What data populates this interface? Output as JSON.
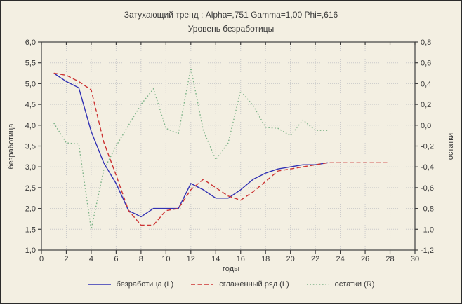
{
  "window": {
    "background": "#f3efe2",
    "frame_color": "#3f3f3f",
    "grid_color": "#c9c9c9",
    "text_color": "#3a3a3a"
  },
  "chart_data": {
    "type": "line",
    "title": "Затухающий тренд ; Alpha=,751 Gamma=1,00 Phi=,616",
    "subtitle": "Уровень безработицы",
    "xlabel": "годы",
    "ylabel_left": "безработица",
    "ylabel_right": "остатки",
    "grid": true,
    "legend_position": "bottom",
    "xlim": [
      0,
      30
    ],
    "ylim_left": [
      1.0,
      6.0
    ],
    "ylim_right": [
      -1.2,
      0.8
    ],
    "x_tick_values": [
      0,
      2,
      4,
      6,
      8,
      10,
      12,
      14,
      16,
      18,
      20,
      22,
      24,
      26,
      28,
      30
    ],
    "x_tick_labels": [
      "0",
      "2",
      "4",
      "6",
      "8",
      "10",
      "12",
      "14",
      "16",
      "18",
      "20",
      "22",
      "24",
      "26",
      "28",
      "30"
    ],
    "left_tick_values": [
      6.0,
      5.5,
      5.0,
      4.5,
      4.0,
      3.5,
      3.0,
      2.5,
      2.0,
      1.5,
      1.0
    ],
    "left_tick_labels": [
      "6,0",
      "5,5",
      "5,0",
      "4,5",
      "4,0",
      "3,5",
      "3,0",
      "2,5",
      "2,0",
      "1,5",
      "1,0"
    ],
    "right_tick_values": [
      0.8,
      0.6,
      0.4,
      0.2,
      0.0,
      -0.2,
      -0.4,
      -0.6,
      -0.8,
      -1.0,
      -1.2
    ],
    "right_tick_labels": [
      "0,8",
      "0,6",
      "0,4",
      "0,2",
      "0,0",
      "-0,2",
      "-0,4",
      "-0,6",
      "-0,8",
      "-1,0",
      "-1,2"
    ],
    "series": [
      {
        "name": "безработица (L)",
        "axis": "left",
        "color": "#3232b4",
        "style": "solid",
        "x": [
          1,
          2,
          3,
          4,
          5,
          6,
          7,
          8,
          9,
          10,
          11,
          12,
          13,
          14,
          15,
          16,
          17,
          18,
          19,
          20,
          21,
          22,
          23
        ],
        "y": [
          5.25,
          5.05,
          4.9,
          3.85,
          3.1,
          2.6,
          1.95,
          1.8,
          2.0,
          2.0,
          2.0,
          2.6,
          2.45,
          2.25,
          2.25,
          2.45,
          2.7,
          2.85,
          2.95,
          3.0,
          3.05,
          3.05,
          3.1
        ]
      },
      {
        "name": "сглаженный ряд (L)",
        "axis": "left",
        "color": "#cc3333",
        "style": "dashed",
        "x": [
          1,
          2,
          3,
          4,
          5,
          6,
          7,
          8,
          9,
          10,
          11,
          12,
          13,
          14,
          15,
          16,
          17,
          18,
          19,
          20,
          21,
          22,
          23,
          24,
          25,
          26,
          27,
          28
        ],
        "y": [
          5.25,
          5.2,
          5.05,
          4.85,
          3.6,
          2.8,
          1.95,
          1.6,
          1.6,
          1.95,
          2.0,
          2.45,
          2.7,
          2.5,
          2.3,
          2.2,
          2.4,
          2.65,
          2.9,
          2.95,
          3.0,
          3.05,
          3.1,
          3.1,
          3.1,
          3.1,
          3.1,
          3.1
        ]
      },
      {
        "name": "остатки (R)",
        "axis": "right",
        "color": "#7cb287",
        "style": "dotted",
        "x": [
          1,
          2,
          3,
          4,
          5,
          6,
          7,
          8,
          9,
          10,
          11,
          12,
          13,
          14,
          15,
          16,
          17,
          18,
          19,
          20,
          21,
          22,
          23
        ],
        "y": [
          0.02,
          -0.17,
          -0.18,
          -1.0,
          -0.43,
          -0.2,
          0.0,
          0.2,
          0.35,
          -0.03,
          -0.08,
          0.55,
          -0.05,
          -0.33,
          -0.17,
          0.33,
          0.19,
          -0.02,
          -0.03,
          -0.1,
          0.05,
          -0.05,
          -0.05
        ]
      }
    ]
  }
}
